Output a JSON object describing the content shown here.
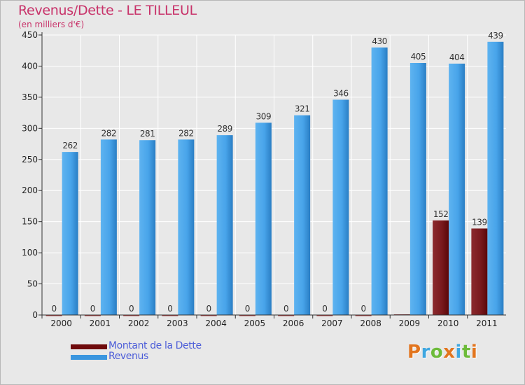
{
  "title": "Revenus/Dette - LE TILLEUL",
  "subtitle": "(en milliers d'€)",
  "legend": [
    {
      "label": "Montant de la Dette",
      "color": "#6e0a0c"
    },
    {
      "label": "Revenus",
      "color": "#3b96df"
    }
  ],
  "logo_text": "Proxiti",
  "logo_colors": [
    "#e2751e",
    "#3fa7e0",
    "#6dbb3a",
    "#e2751e",
    "#3fa7e0",
    "#6dbb3a",
    "#e2751e"
  ],
  "chart_data": {
    "type": "bar",
    "title": "Revenus/Dette - LE TILLEUL",
    "ylabel": "(en milliers d'€)",
    "xlabel": "",
    "categories": [
      "2000",
      "2001",
      "2002",
      "2003",
      "2004",
      "2005",
      "2006",
      "2007",
      "2008",
      "2009",
      "2010",
      "2011"
    ],
    "series": [
      {
        "name": "Montant de la Dette",
        "color": "#6e0a0c",
        "values": [
          0,
          0,
          0,
          0,
          0,
          0,
          0,
          0,
          0,
          1,
          152,
          139
        ],
        "labels": [
          "0",
          "0",
          "0",
          "0",
          "0",
          "0",
          "0",
          "0",
          "0",
          "",
          "152",
          "139"
        ]
      },
      {
        "name": "Revenus",
        "color": "#3b96df",
        "values": [
          262,
          282,
          281,
          282,
          289,
          309,
          321,
          346,
          430,
          405,
          404,
          439
        ],
        "labels": [
          "262",
          "282",
          "281",
          "282",
          "289",
          "309",
          "321",
          "346",
          "430",
          "405",
          "404",
          "439"
        ]
      }
    ],
    "ylim": [
      0,
      450
    ],
    "yticks": [
      0,
      50,
      100,
      150,
      200,
      250,
      300,
      350,
      400,
      450
    ],
    "grid": true,
    "legend_position": "bottom-left"
  }
}
